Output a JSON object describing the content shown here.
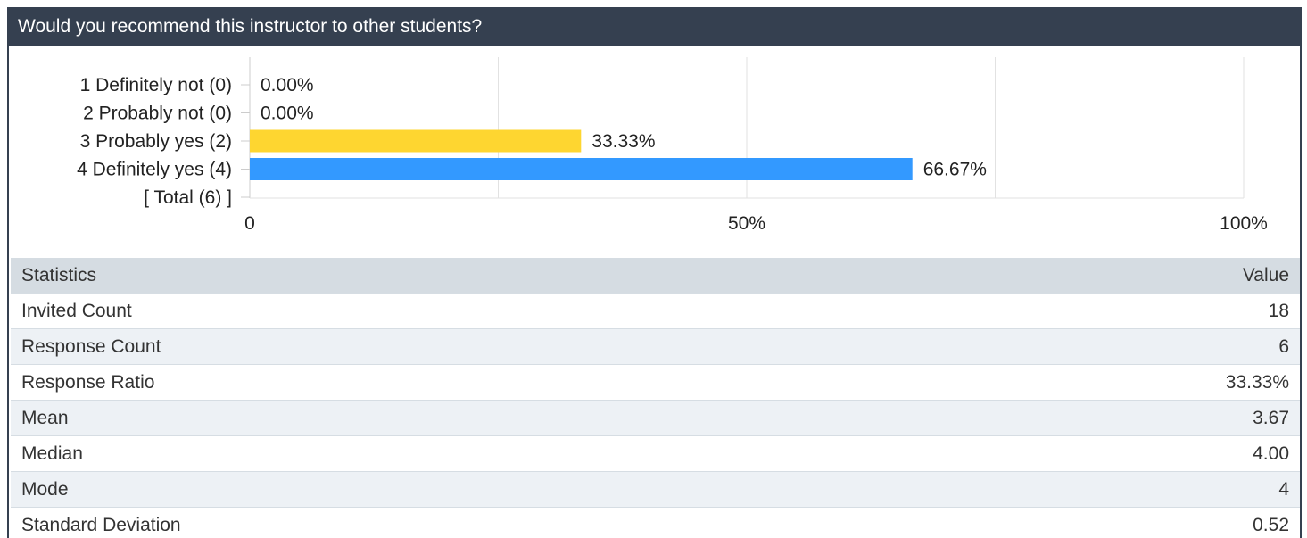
{
  "header": {
    "question": "Would you recommend this instructor to other students?"
  },
  "chart_data": {
    "type": "bar",
    "orientation": "horizontal",
    "categories": [
      "1 Definitely not (0)",
      "2 Probably not (0)",
      "3 Probably yes (2)",
      "4 Definitely yes (4)",
      "[ Total (6) ]"
    ],
    "values": [
      0,
      0,
      33.33,
      66.67,
      null
    ],
    "value_labels": [
      "0.00%",
      "0.00%",
      "33.33%",
      "66.67%",
      ""
    ],
    "colors": [
      "#3399ff",
      "#3399ff",
      "#fed630",
      "#3399ff",
      "#3399ff"
    ],
    "xlim": [
      0,
      100
    ],
    "x_ticks": [
      0,
      50,
      100
    ],
    "x_tick_labels": [
      "0",
      "50%",
      "100%"
    ],
    "grid": true,
    "gridlines": [
      0,
      25,
      50,
      75,
      100
    ]
  },
  "statistics": {
    "header_label": "Statistics",
    "header_value": "Value",
    "rows": [
      {
        "label": "Invited Count",
        "value": "18"
      },
      {
        "label": "Response Count",
        "value": "6"
      },
      {
        "label": "Response Ratio",
        "value": "33.33%"
      },
      {
        "label": "Mean",
        "value": "3.67"
      },
      {
        "label": "Median",
        "value": "4.00"
      },
      {
        "label": "Mode",
        "value": "4"
      },
      {
        "label": "Standard Deviation",
        "value": "0.52"
      }
    ]
  }
}
